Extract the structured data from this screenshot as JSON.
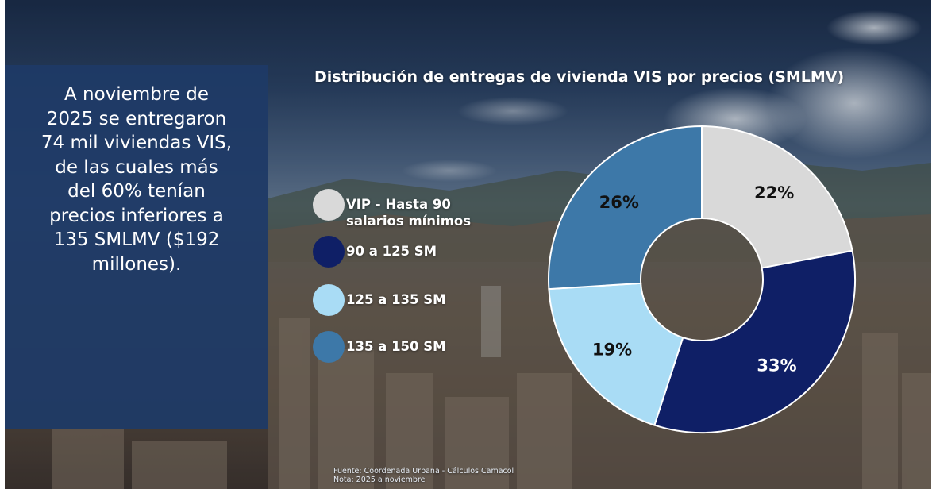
{
  "summary_text": "A  noviembre de\n2025 se entregaron\n74 mil viviendas VIS,\nde las cuales más\ndel 60% tenían\nprecios inferiores a\n135 SMLMV ($192\nmillones).",
  "footnote": {
    "source": "Fuente: Coordenada Urbana - Cálculos Camacol",
    "note": "Nota: 2025 a noviembre"
  },
  "colors": {
    "panel": "#1f3a66",
    "sky_top": "#1d2f4c",
    "sky_mid": "#5a6f8a",
    "city": "#6b5848"
  },
  "chart_data": {
    "type": "pie",
    "variant": "donut",
    "title": "Distribución de entregas de vivienda VIS por precios (SMLMV)",
    "legend_position": "left",
    "categories": [
      "VIP - Hasta 90\nsalarios mínimos",
      "90 a 125 SM",
      "125 a 135 SM",
      "135 a 150 SM"
    ],
    "values": [
      22,
      33,
      19,
      26
    ],
    "labels": [
      "22%",
      "33%",
      "19%",
      "26%"
    ],
    "colors": [
      "#d9d9d9",
      "#0f1f66",
      "#a9dcf5",
      "#3d78a8"
    ],
    "label_colors": [
      "#111111",
      "#ffffff",
      "#111111",
      "#111111"
    ]
  }
}
